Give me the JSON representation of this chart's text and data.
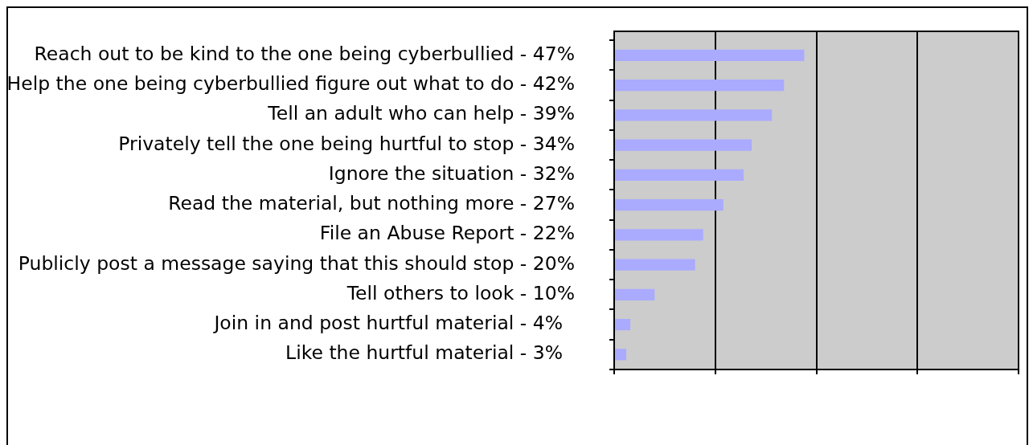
{
  "chart_data": {
    "type": "bar",
    "orientation": "horizontal",
    "categories": [
      "Reach out to be kind to the one being cyberbullied -",
      "Help the one being cyberbullied figure out what to do -",
      "Tell an adult who can help -",
      "Privately tell the one being hurtful to stop -",
      "Ignore the situation -",
      "Read the material, but nothing more -",
      "File an Abuse Report -",
      "Publicly post a message saying that this should stop -",
      "Tell others to look -",
      "Join in and post hurtful material -",
      "Like the hurtful material -"
    ],
    "values": [
      47,
      42,
      39,
      34,
      32,
      27,
      22,
      20,
      10,
      4,
      3
    ],
    "value_labels": [
      "47%",
      "42%",
      "39%",
      "34%",
      "32%",
      "27%",
      "22%",
      "20%",
      "10%",
      "4%",
      "3%"
    ],
    "color": "#aaaaff",
    "xlim": [
      0,
      100
    ],
    "xticks": [
      {
        "value": 0,
        "label": null
      },
      {
        "value": 25,
        "label": null
      },
      {
        "value": 50,
        "label": null
      },
      {
        "value": 75,
        "label": null
      },
      {
        "value": 100,
        "label": null
      }
    ],
    "grid": "x",
    "tick_labels": "y"
  }
}
